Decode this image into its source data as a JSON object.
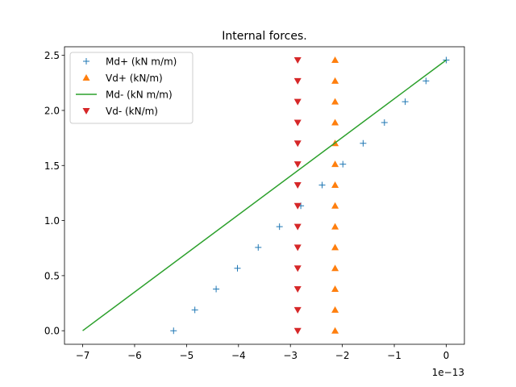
{
  "chart_data": {
    "type": "line",
    "title": "Internal forces.",
    "xlabel": "",
    "ylabel": "",
    "x_offset_label": "1e−13",
    "xlim": [
      -7.35,
      0.35
    ],
    "ylim": [
      -0.123,
      2.578
    ],
    "xticks": [
      -7,
      -6,
      -5,
      -4,
      -3,
      -2,
      -1,
      0
    ],
    "xtick_labels": [
      "−7",
      "−6",
      "−5",
      "−4",
      "−3",
      "−2",
      "−1",
      "0"
    ],
    "yticks": [
      0.0,
      0.5,
      1.0,
      1.5,
      2.0,
      2.5
    ],
    "ytick_labels": [
      "0.0",
      "0.5",
      "1.0",
      "1.5",
      "2.0",
      "2.5"
    ],
    "legend_position": "top-left",
    "grid": false,
    "series": [
      {
        "name": "Md+ (kN m/m)",
        "style": "markers",
        "marker": "plus",
        "color": "#1f77b4",
        "x": [
          -5.25,
          -4.84,
          -4.43,
          -4.02,
          -3.62,
          -3.21,
          -2.8,
          -2.39,
          -1.99,
          -1.6,
          -1.19,
          -0.79,
          -0.39,
          0.0
        ],
        "y": [
          0.0,
          0.189,
          0.378,
          0.567,
          0.756,
          0.945,
          1.134,
          1.323,
          1.512,
          1.701,
          1.89,
          2.079,
          2.268,
          2.457
        ]
      },
      {
        "name": "Vd+ (kN/m)",
        "style": "markers",
        "marker": "triangle-up",
        "color": "#ff7f0e",
        "x": [
          -2.14,
          -2.14,
          -2.14,
          -2.14,
          -2.14,
          -2.14,
          -2.14,
          -2.14,
          -2.14,
          -2.14,
          -2.14,
          -2.14,
          -2.14,
          -2.14
        ],
        "y": [
          0.0,
          0.189,
          0.378,
          0.567,
          0.756,
          0.945,
          1.134,
          1.323,
          1.512,
          1.701,
          1.89,
          2.079,
          2.268,
          2.457
        ]
      },
      {
        "name": "Md- (kN m/m)",
        "style": "line",
        "color": "#2ca02c",
        "x": [
          -7.0,
          0.0
        ],
        "y": [
          0.0,
          2.457
        ]
      },
      {
        "name": "Vd- (kN/m)",
        "style": "markers",
        "marker": "triangle-down",
        "color": "#d62728",
        "x": [
          -2.86,
          -2.86,
          -2.86,
          -2.86,
          -2.86,
          -2.86,
          -2.86,
          -2.86,
          -2.86,
          -2.86,
          -2.86,
          -2.86,
          -2.86,
          -2.86
        ],
        "y": [
          0.0,
          0.189,
          0.378,
          0.567,
          0.756,
          0.945,
          1.134,
          1.323,
          1.512,
          1.701,
          1.89,
          2.079,
          2.268,
          2.457
        ]
      }
    ]
  }
}
